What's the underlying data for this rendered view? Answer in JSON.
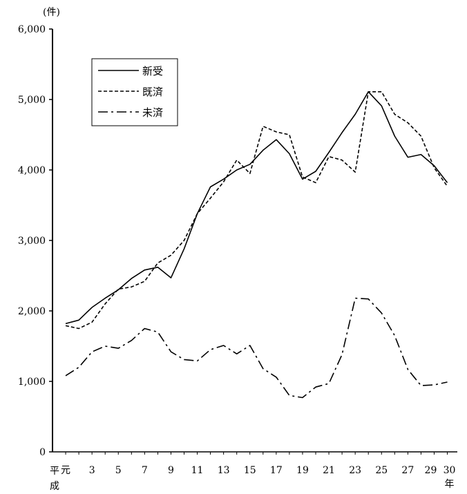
{
  "chart_data": {
    "type": "line",
    "title": "",
    "ylabel": "(件)",
    "xlabel": "年",
    "era_label": [
      "平",
      "成"
    ],
    "ylim": [
      0,
      6000
    ],
    "yticks": [
      0,
      1000,
      2000,
      3000,
      4000,
      5000,
      6000
    ],
    "ytick_labels": [
      "0",
      "1,000",
      "2,000",
      "3,000",
      "4,000",
      "5,000",
      "6,000"
    ],
    "x": [
      1,
      2,
      3,
      4,
      5,
      6,
      7,
      8,
      9,
      10,
      11,
      12,
      13,
      14,
      15,
      16,
      17,
      18,
      19,
      20,
      21,
      22,
      23,
      24,
      25,
      26,
      27,
      28,
      29,
      30
    ],
    "xtick_values": [
      1,
      3,
      5,
      7,
      9,
      11,
      13,
      15,
      17,
      19,
      21,
      23,
      25,
      27,
      29,
      30
    ],
    "xtick_labels": [
      "元",
      "3",
      "5",
      "7",
      "9",
      "11",
      "13",
      "15",
      "17",
      "19",
      "21",
      "23",
      "25",
      "27",
      "29",
      "30"
    ],
    "legend_position": "top-left",
    "grid": false,
    "series": [
      {
        "name": "新受",
        "style": "solid",
        "values": [
          1820,
          1870,
          2050,
          2180,
          2300,
          2460,
          2580,
          2620,
          2470,
          2880,
          3380,
          3760,
          3870,
          4000,
          4080,
          4280,
          4430,
          4230,
          3870,
          3980,
          4250,
          4530,
          4790,
          5110,
          4910,
          4480,
          4180,
          4220,
          4060,
          3820
        ]
      },
      {
        "name": "既済",
        "style": "dashed",
        "values": [
          1790,
          1750,
          1840,
          2100,
          2310,
          2340,
          2420,
          2680,
          2790,
          3000,
          3380,
          3600,
          3830,
          4140,
          3950,
          4620,
          4540,
          4500,
          3900,
          3820,
          4190,
          4140,
          3970,
          5110,
          5110,
          4790,
          4670,
          4480,
          4030,
          3770
        ]
      },
      {
        "name": "未済",
        "style": "dashdot",
        "values": [
          1080,
          1200,
          1420,
          1500,
          1470,
          1580,
          1750,
          1700,
          1420,
          1310,
          1290,
          1450,
          1510,
          1390,
          1510,
          1180,
          1060,
          800,
          770,
          920,
          970,
          1380,
          2180,
          2170,
          1970,
          1650,
          1170,
          940,
          950,
          990
        ]
      }
    ]
  }
}
